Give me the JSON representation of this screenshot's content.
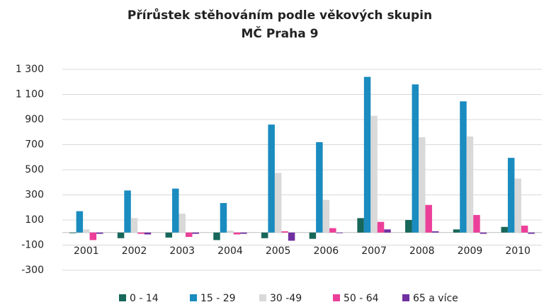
{
  "chart_data": {
    "type": "bar",
    "title": "Přírůstek stěhováním podle věkových skupin",
    "subtitle": "MČ Praha 9",
    "categories": [
      "2001",
      "2002",
      "2003",
      "2004",
      "2005",
      "2006",
      "2007",
      "2008",
      "2009",
      "2010"
    ],
    "series": [
      {
        "name": "0 - 14",
        "color": "#17675a",
        "values": [
          -5,
          -45,
          -40,
          -60,
          -45,
          -50,
          115,
          100,
          25,
          45
        ]
      },
      {
        "name": "15 - 29",
        "color": "#1a8cbf",
        "values": [
          170,
          335,
          350,
          235,
          860,
          720,
          1240,
          1180,
          1045,
          595
        ]
      },
      {
        "name": "30 -49",
        "color": "#d9d9d9",
        "values": [
          25,
          115,
          150,
          15,
          475,
          260,
          930,
          760,
          765,
          430
        ]
      },
      {
        "name": "50 - 64",
        "color": "#ec3f9a",
        "values": [
          -60,
          -10,
          -35,
          -15,
          10,
          35,
          85,
          220,
          140,
          55
        ]
      },
      {
        "name": "65 a více",
        "color": "#7030a0",
        "values": [
          -10,
          -15,
          -10,
          -10,
          -65,
          -5,
          25,
          10,
          -10,
          -10
        ]
      }
    ],
    "ylim": [
      -300,
      1300
    ],
    "yticks": [
      -300,
      -100,
      100,
      300,
      500,
      700,
      900,
      {
        "value": 1100,
        "label": "1 100"
      },
      {
        "value": 1300,
        "label": "1 300"
      }
    ],
    "grid": true,
    "legend": "bottom"
  }
}
